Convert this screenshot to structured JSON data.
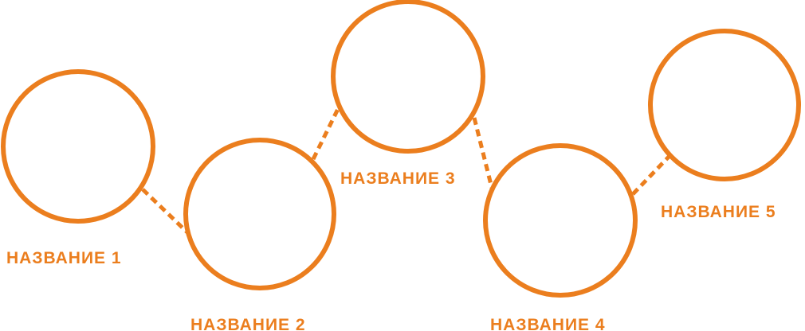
{
  "accent_color": "#EB7E1E",
  "nodes": [
    {
      "id": "node-1",
      "label": "НАЗВАНИЕ 1"
    },
    {
      "id": "node-2",
      "label": "НАЗВАНИЕ 2"
    },
    {
      "id": "node-3",
      "label": "НАЗВАНИЕ 3"
    },
    {
      "id": "node-4",
      "label": "НАЗВАНИЕ 4"
    },
    {
      "id": "node-5",
      "label": "НАЗВАНИЕ 5"
    }
  ],
  "connectors": [
    {
      "from": "node-1",
      "to": "node-2",
      "style": "dashed"
    },
    {
      "from": "node-2",
      "to": "node-3",
      "style": "dashed"
    },
    {
      "from": "node-3",
      "to": "node-4",
      "style": "dashed"
    },
    {
      "from": "node-4",
      "to": "node-5",
      "style": "dashed"
    }
  ]
}
